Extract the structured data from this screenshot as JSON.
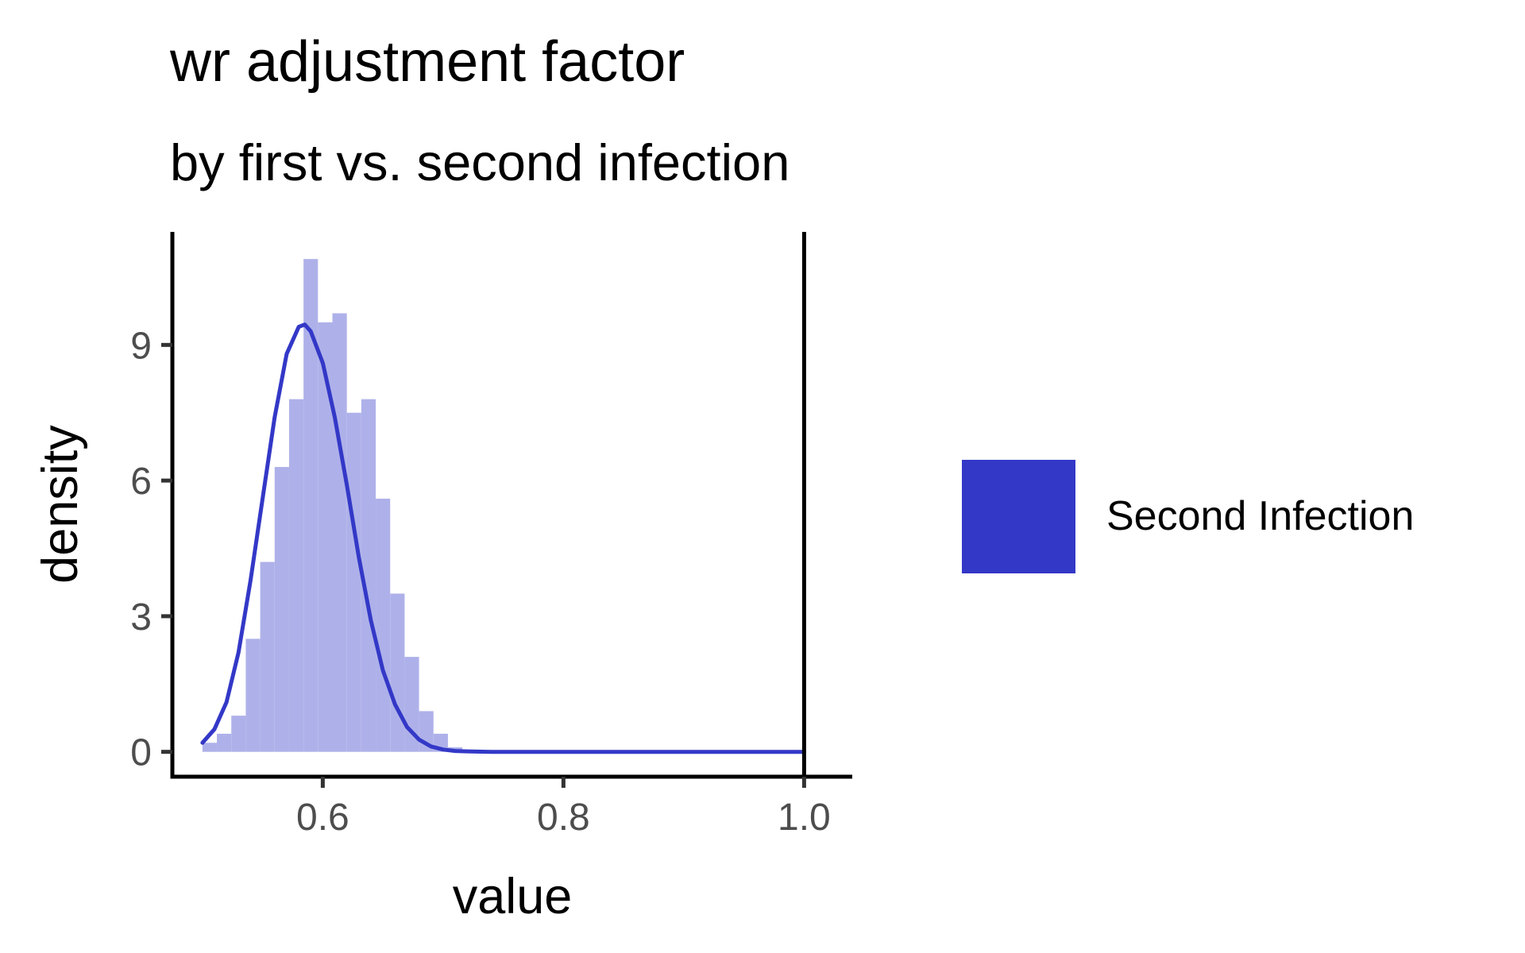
{
  "chart_data": {
    "type": "histogram",
    "title": "wr adjustment factor",
    "subtitle": "by first vs. second infection",
    "xlabel": "value",
    "ylabel": "density",
    "xlim": [
      0.475,
      1.04
    ],
    "ylim": [
      -0.55,
      11.5
    ],
    "xticks": [
      0.6,
      0.8,
      1.0
    ],
    "xtick_labels": [
      "0.6",
      "0.8",
      "1.0"
    ],
    "yticks": [
      0,
      3,
      6,
      9
    ],
    "ytick_labels": [
      "0",
      "3",
      "6",
      "9"
    ],
    "vline_x": 1.0,
    "grid": false,
    "legend_position": "right",
    "series": [
      {
        "name": "Second Infection",
        "color": "#3338c7",
        "hist_color": "#aeb1e9",
        "bin_width": 0.012,
        "bins": [
          {
            "x0": 0.5,
            "density": 0.2
          },
          {
            "x0": 0.512,
            "density": 0.4
          },
          {
            "x0": 0.524,
            "density": 0.8
          },
          {
            "x0": 0.536,
            "density": 2.5
          },
          {
            "x0": 0.548,
            "density": 4.2
          },
          {
            "x0": 0.56,
            "density": 6.3
          },
          {
            "x0": 0.572,
            "density": 7.8
          },
          {
            "x0": 0.584,
            "density": 10.9
          },
          {
            "x0": 0.596,
            "density": 9.5
          },
          {
            "x0": 0.608,
            "density": 9.7
          },
          {
            "x0": 0.62,
            "density": 7.5
          },
          {
            "x0": 0.632,
            "density": 7.8
          },
          {
            "x0": 0.644,
            "density": 5.6
          },
          {
            "x0": 0.656,
            "density": 3.5
          },
          {
            "x0": 0.668,
            "density": 2.1
          },
          {
            "x0": 0.68,
            "density": 0.9
          },
          {
            "x0": 0.692,
            "density": 0.4
          },
          {
            "x0": 0.704,
            "density": 0.1
          }
        ],
        "density_curve": {
          "x": [
            0.5,
            0.51,
            0.52,
            0.53,
            0.54,
            0.55,
            0.56,
            0.57,
            0.58,
            0.585,
            0.59,
            0.6,
            0.61,
            0.62,
            0.63,
            0.64,
            0.65,
            0.66,
            0.67,
            0.68,
            0.69,
            0.7,
            0.71,
            0.72,
            0.74,
            0.76,
            0.8,
            0.85,
            0.9,
            0.95,
            1.0
          ],
          "y": [
            0.2,
            0.5,
            1.1,
            2.2,
            3.8,
            5.6,
            7.4,
            8.8,
            9.4,
            9.45,
            9.3,
            8.6,
            7.4,
            5.9,
            4.3,
            2.9,
            1.8,
            1.05,
            0.55,
            0.27,
            0.12,
            0.05,
            0.02,
            0.01,
            0.0,
            0.0,
            0.0,
            0.0,
            0.0,
            0.0,
            0.0
          ]
        }
      }
    ]
  }
}
